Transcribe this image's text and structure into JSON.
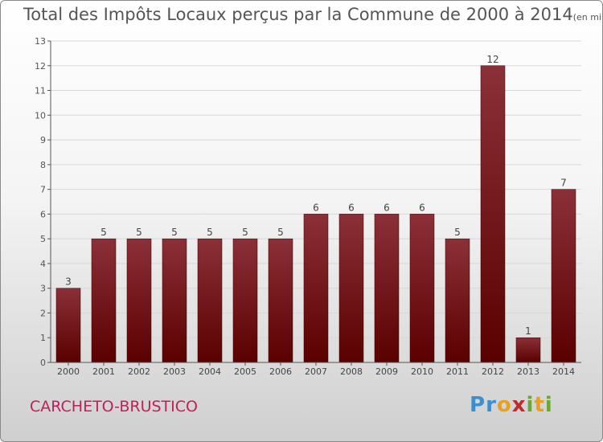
{
  "chart_data": {
    "type": "bar",
    "title": "Total des Impôts Locaux perçus par la Commune de 2000 à 2014",
    "unit_label": "(en milliers d'€)",
    "categories": [
      "2000",
      "2001",
      "2002",
      "2003",
      "2004",
      "2005",
      "2006",
      "2007",
      "2008",
      "2009",
      "2010",
      "2011",
      "2012",
      "2013",
      "2014"
    ],
    "values": [
      3,
      5,
      5,
      5,
      5,
      5,
      5,
      6,
      6,
      6,
      6,
      5,
      12,
      1,
      7
    ],
    "yticks": [
      "0",
      "1",
      "2",
      "3",
      "4",
      "5",
      "6",
      "7",
      "8",
      "9",
      "10",
      "11",
      "12",
      "13"
    ],
    "ylim": [
      0,
      13
    ],
    "xlabel": "",
    "ylabel": "",
    "bar_color_top": "#8b3038",
    "bar_color_bottom": "#5a0000"
  },
  "commune": "CARCHETO-BRUSTICO",
  "logo": {
    "p": "P",
    "r": "r",
    "o": "o",
    "x": "x",
    "i1": "i",
    "t": "t",
    "i2": "i"
  }
}
